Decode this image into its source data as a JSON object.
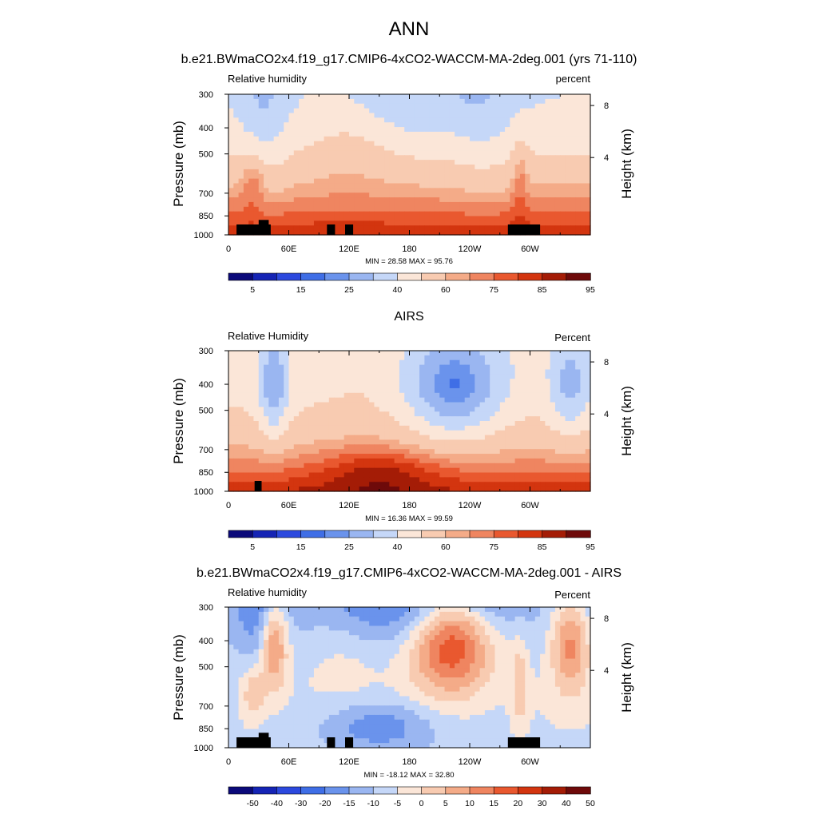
{
  "figure": {
    "title": "ANN"
  },
  "colors": {
    "sequential": [
      "#0b0a7a",
      "#1524b5",
      "#2c49de",
      "#3f6ee6",
      "#6a93ec",
      "#9ab6f1",
      "#c5d7f8",
      "#fbe6d8",
      "#f8cbb1",
      "#f4ab88",
      "#ef8560",
      "#e9582f",
      "#d3350f",
      "#a41c06",
      "#6e0a0a"
    ],
    "diverging": [
      "#0b0a7a",
      "#1524b5",
      "#2c49de",
      "#3f6ee6",
      "#6a93ec",
      "#9ab6f1",
      "#c5d7f8",
      "#fbe6d8",
      "#f8cbb1",
      "#f4ab88",
      "#ef8560",
      "#e9582f",
      "#d3350f",
      "#a41c06",
      "#6e0a0a"
    ],
    "mask": "#000000"
  },
  "chart_data": [
    {
      "type": "heatmap",
      "title": "b.e21.BWmaCO2x4.f19_g17.CMIP6-4xCO2-WACCM-MA-2deg.001 (yrs 71-110)",
      "left_string": "Relative humidity",
      "right_string": "percent",
      "ylabel": "Pressure (mb)",
      "y2label": "Height (km)",
      "xticks": [
        "0",
        "60E",
        "120E",
        "180",
        "120W",
        "60W"
      ],
      "yticks": [
        "300",
        "400",
        "500",
        "700",
        "850",
        "1000"
      ],
      "y2ticks": [
        "8",
        "4"
      ],
      "stats": "MIN =  28.58  MAX =  95.76",
      "min": 28.58,
      "max": 95.76,
      "kind": "model",
      "colorbar": {
        "labels": [
          "5",
          "15",
          "25",
          "40",
          "60",
          "75",
          "85",
          "95"
        ]
      }
    },
    {
      "type": "heatmap",
      "title": "AIRS",
      "left_string": "Relative Humidity",
      "right_string": "Percent",
      "ylabel": "Pressure (mb)",
      "y2label": "Height (km)",
      "xticks": [
        "0",
        "60E",
        "120E",
        "180",
        "120W",
        "60W"
      ],
      "yticks": [
        "300",
        "400",
        "500",
        "700",
        "850",
        "1000"
      ],
      "y2ticks": [
        "8",
        "4"
      ],
      "stats": "MIN =  16.36  MAX =  99.59",
      "min": 16.36,
      "max": 99.59,
      "kind": "obs",
      "colorbar": {
        "labels": [
          "5",
          "15",
          "25",
          "40",
          "60",
          "75",
          "85",
          "95"
        ]
      }
    },
    {
      "type": "heatmap",
      "title": "b.e21.BWmaCO2x4.f19_g17.CMIP6-4xCO2-WACCM-MA-2deg.001 - AIRS",
      "left_string": "Relative humidity",
      "right_string": "Percent",
      "ylabel": "Pressure (mb)",
      "y2label": "Height (km)",
      "xticks": [
        "0",
        "60E",
        "120E",
        "180",
        "120W",
        "60W"
      ],
      "yticks": [
        "300",
        "400",
        "500",
        "700",
        "850",
        "1000"
      ],
      "y2ticks": [
        "8",
        "4"
      ],
      "stats": "MIN = -18.12  MAX =  32.80",
      "min": -18.12,
      "max": 32.8,
      "kind": "diff",
      "colorbar": {
        "labels": [
          "-50",
          "-40",
          "-30",
          "-20",
          "-15",
          "-10",
          "-5",
          "0",
          "5",
          "10",
          "15",
          "20",
          "30",
          "40",
          "50"
        ]
      }
    }
  ]
}
